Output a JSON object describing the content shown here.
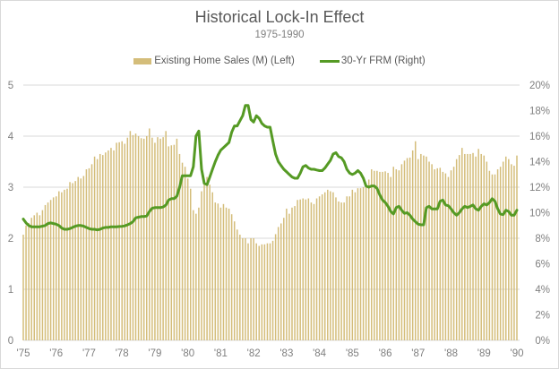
{
  "chart_data": {
    "type": "bar+line",
    "title": "Historical Lock-In Effect",
    "subtitle": "1975-1990",
    "x_range": [
      "1975-01",
      "1990-01"
    ],
    "x_frequency": "monthly",
    "x_tick_labels": [
      "'75",
      "'76",
      "'77",
      "'78",
      "'79",
      "'80",
      "'81",
      "'82",
      "'83",
      "'84",
      "'85",
      "'86",
      "'87",
      "'88",
      "'89",
      "'90"
    ],
    "y_left": {
      "ylim": [
        0,
        5
      ],
      "tick_labels": [
        "0",
        "1",
        "2",
        "3",
        "4",
        "5"
      ]
    },
    "y_right": {
      "ylim": [
        0,
        20
      ],
      "unit": "%",
      "tick_labels": [
        "0%",
        "2%",
        "4%",
        "6%",
        "8%",
        "10%",
        "12%",
        "14%",
        "16%",
        "18%",
        "20%"
      ]
    },
    "grid": true,
    "legend_position": "top",
    "colors": {
      "bars": "#d4bd7a",
      "line": "#559a24",
      "grid": "#d9d9d9",
      "text": "#595959"
    },
    "series": [
      {
        "name": "Existing Home Sales (M) (Left)",
        "type": "bar",
        "axis": "left",
        "values": [
          2.07,
          2.25,
          2.3,
          2.4,
          2.45,
          2.5,
          2.45,
          2.55,
          2.65,
          2.7,
          2.75,
          2.8,
          2.82,
          2.92,
          2.9,
          2.95,
          2.97,
          3.1,
          3.08,
          3.12,
          3.2,
          3.17,
          3.22,
          3.35,
          3.37,
          3.45,
          3.6,
          3.55,
          3.65,
          3.63,
          3.68,
          3.72,
          3.77,
          3.72,
          3.87,
          3.88,
          3.9,
          3.85,
          3.97,
          4.1,
          4.02,
          4.05,
          4.0,
          3.96,
          3.95,
          4.0,
          4.15,
          3.97,
          3.87,
          3.98,
          3.95,
          3.98,
          4.1,
          3.8,
          3.82,
          3.83,
          3.95,
          3.65,
          3.48,
          3.4,
          3.17,
          2.97,
          2.55,
          2.48,
          2.6,
          2.92,
          3.05,
          3.2,
          3.05,
          2.9,
          2.7,
          2.68,
          2.6,
          2.67,
          2.6,
          2.58,
          2.47,
          2.33,
          2.17,
          2.07,
          2.0,
          2.0,
          1.9,
          2.0,
          2.0,
          1.9,
          1.85,
          1.88,
          1.88,
          1.9,
          1.9,
          1.95,
          2.08,
          2.22,
          2.29,
          2.4,
          2.58,
          2.48,
          2.6,
          2.63,
          2.75,
          2.76,
          2.78,
          2.76,
          2.78,
          2.7,
          2.67,
          2.78,
          2.82,
          2.86,
          2.9,
          2.95,
          2.92,
          2.9,
          2.8,
          2.72,
          2.7,
          2.7,
          2.82,
          2.82,
          2.95,
          2.9,
          2.98,
          2.98,
          3.0,
          3.05,
          3.15,
          3.35,
          3.32,
          3.32,
          3.3,
          3.3,
          3.31,
          3.28,
          3.2,
          3.4,
          3.35,
          3.33,
          3.45,
          3.52,
          3.57,
          3.58,
          3.72,
          3.9,
          3.55,
          3.65,
          3.62,
          3.6,
          3.5,
          3.45,
          3.35,
          3.37,
          3.38,
          3.3,
          3.27,
          3.2,
          3.33,
          3.4,
          3.55,
          3.63,
          3.77,
          3.65,
          3.65,
          3.65,
          3.67,
          3.6,
          3.75,
          3.65,
          3.62,
          3.5,
          3.32,
          3.25,
          3.25,
          3.35,
          3.4,
          3.5,
          3.6,
          3.55,
          3.45,
          3.42,
          3.62
        ]
      },
      {
        "name": "30-Yr FRM (Right)",
        "type": "line",
        "axis": "right",
        "values": [
          9.5,
          9.2,
          9.0,
          8.9,
          8.9,
          8.9,
          8.9,
          8.95,
          9.0,
          9.15,
          9.2,
          9.15,
          9.1,
          9.0,
          8.8,
          8.7,
          8.7,
          8.75,
          8.85,
          8.95,
          9.0,
          9.0,
          8.95,
          8.85,
          8.75,
          8.7,
          8.7,
          8.65,
          8.7,
          8.8,
          8.85,
          8.85,
          8.9,
          8.9,
          8.9,
          8.92,
          8.93,
          8.97,
          9.05,
          9.15,
          9.3,
          9.6,
          9.65,
          9.7,
          9.7,
          9.75,
          10.1,
          10.35,
          10.4,
          10.4,
          10.4,
          10.45,
          10.6,
          11.0,
          11.1,
          11.1,
          11.3,
          12.0,
          12.9,
          12.9,
          12.9,
          12.9,
          13.6,
          16.0,
          16.4,
          13.4,
          12.3,
          12.2,
          12.8,
          13.4,
          14.0,
          14.5,
          14.9,
          15.1,
          15.3,
          15.5,
          16.3,
          16.8,
          16.8,
          17.2,
          17.6,
          18.4,
          18.4,
          17.3,
          17.1,
          17.6,
          17.4,
          17.0,
          16.8,
          16.7,
          16.7,
          15.6,
          14.6,
          14.0,
          13.7,
          13.4,
          13.2,
          13.0,
          12.8,
          12.7,
          12.7,
          13.1,
          13.6,
          13.7,
          13.5,
          13.4,
          13.4,
          13.35,
          13.3,
          13.3,
          13.5,
          13.8,
          14.1,
          14.6,
          14.7,
          14.4,
          14.3,
          14.0,
          13.4,
          13.1,
          13.0,
          13.1,
          13.3,
          13.1,
          12.7,
          12.1,
          12.0,
          12.1,
          12.1,
          11.9,
          11.4,
          11.0,
          10.8,
          10.5,
          10.1,
          9.9,
          10.4,
          10.5,
          10.2,
          9.95,
          10.0,
          9.8,
          9.5,
          9.3,
          9.1,
          9.05,
          9.05,
          10.4,
          10.5,
          10.3,
          10.3,
          10.3,
          10.9,
          11.0,
          10.6,
          10.55,
          10.3,
          10.0,
          9.8,
          10.0,
          10.3,
          10.5,
          10.4,
          10.5,
          10.6,
          10.3,
          10.2,
          10.5,
          10.7,
          10.6,
          10.8,
          11.1,
          10.9,
          10.3,
          9.9,
          9.85,
          10.2,
          10.1,
          9.8,
          9.8,
          10.2
        ]
      }
    ]
  }
}
